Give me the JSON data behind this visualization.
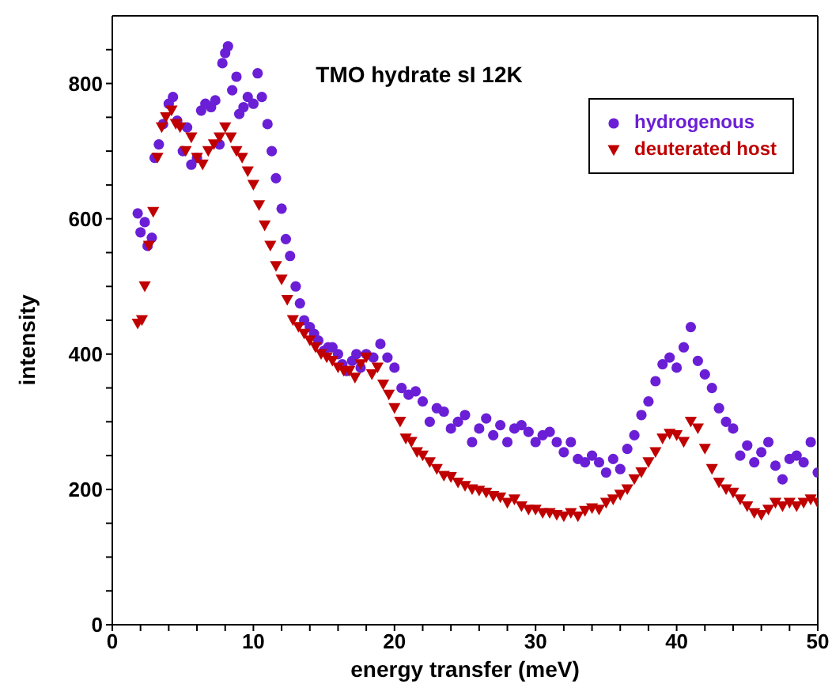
{
  "chart_data": {
    "type": "scatter",
    "title": "TMO hydrate sI 12K",
    "xlabel": "energy transfer (meV)",
    "ylabel": "intensity",
    "xlim": [
      0,
      50
    ],
    "xticks": [
      0,
      {
        "value": 2,
        "label": null
      },
      {
        "value": 4,
        "label": null
      },
      {
        "value": 6,
        "label": null
      },
      {
        "value": 8,
        "label": null
      },
      10,
      {
        "value": 12,
        "label": null
      },
      {
        "value": 14,
        "label": null
      },
      {
        "value": 16,
        "label": null
      },
      {
        "value": 18,
        "label": null
      },
      20,
      {
        "value": 22,
        "label": null
      },
      {
        "value": 24,
        "label": null
      },
      {
        "value": 26,
        "label": null
      },
      {
        "value": 28,
        "label": null
      },
      30,
      {
        "value": 32,
        "label": null
      },
      {
        "value": 34,
        "label": null
      },
      {
        "value": 36,
        "label": null
      },
      {
        "value": 38,
        "label": null
      },
      40,
      {
        "value": 42,
        "label": null
      },
      {
        "value": 44,
        "label": null
      },
      {
        "value": 46,
        "label": null
      },
      {
        "value": 48,
        "label": null
      },
      50
    ],
    "ylim": [
      0,
      900
    ],
    "yticks": [
      0,
      {
        "value": 50,
        "label": null
      },
      {
        "value": 100,
        "label": null
      },
      {
        "value": 150,
        "label": null
      },
      200,
      {
        "value": 250,
        "label": null
      },
      {
        "value": 300,
        "label": null
      },
      {
        "value": 350,
        "label": null
      },
      400,
      {
        "value": 450,
        "label": null
      },
      {
        "value": 500,
        "label": null
      },
      {
        "value": 550,
        "label": null
      },
      600,
      {
        "value": 650,
        "label": null
      },
      {
        "value": 700,
        "label": null
      },
      {
        "value": 750,
        "label": null
      },
      800,
      {
        "value": 850,
        "label": null
      }
    ],
    "legend": "top right",
    "series": [
      {
        "name": "hydrogenous",
        "color": "#6a1fd6",
        "marker": "circle",
        "x": [
          1.8,
          2.0,
          2.3,
          2.5,
          2.8,
          3.0,
          3.3,
          3.6,
          4.0,
          4.3,
          4.6,
          5.0,
          5.3,
          5.6,
          6.0,
          6.3,
          6.6,
          7.0,
          7.3,
          7.6,
          7.8,
          8.0,
          8.2,
          8.5,
          8.8,
          9.0,
          9.3,
          9.6,
          10.0,
          10.3,
          10.6,
          11.0,
          11.3,
          11.6,
          12.0,
          12.3,
          12.6,
          13.0,
          13.3,
          13.6,
          14.0,
          14.3,
          14.6,
          15.0,
          15.3,
          15.6,
          16.0,
          16.3,
          16.6,
          17.0,
          17.3,
          17.6,
          18.0,
          18.5,
          19.0,
          19.5,
          20.0,
          20.5,
          21.0,
          21.5,
          22,
          22.5,
          23,
          23.5,
          24,
          24.5,
          25,
          25.5,
          26,
          26.5,
          27,
          27.5,
          28,
          28.5,
          29,
          29.5,
          30,
          30.5,
          31,
          31.5,
          32,
          32.5,
          33,
          33.5,
          34,
          34.5,
          35,
          35.5,
          36,
          36.5,
          37,
          37.5,
          38,
          38.5,
          39,
          39.5,
          40,
          40.5,
          41,
          41.5,
          42,
          42.5,
          43,
          43.5,
          44,
          44.5,
          45,
          45.5,
          46,
          46.5,
          47,
          47.5,
          48,
          48.5,
          49,
          49.5,
          50
        ],
        "values": [
          608,
          580,
          595,
          560,
          572,
          690,
          710,
          740,
          770,
          780,
          745,
          700,
          735,
          680,
          690,
          760,
          770,
          765,
          775,
          710,
          830,
          845,
          855,
          790,
          810,
          755,
          765,
          780,
          770,
          815,
          780,
          740,
          700,
          660,
          615,
          570,
          545,
          500,
          475,
          450,
          440,
          430,
          420,
          405,
          410,
          410,
          400,
          385,
          375,
          390,
          400,
          380,
          400,
          395,
          415,
          395,
          380,
          350,
          340,
          345,
          330,
          300,
          320,
          315,
          290,
          300,
          310,
          270,
          290,
          305,
          280,
          295,
          270,
          290,
          295,
          285,
          270,
          280,
          285,
          270,
          255,
          270,
          245,
          240,
          250,
          240,
          225,
          245,
          230,
          260,
          280,
          310,
          330,
          360,
          385,
          395,
          380,
          410,
          440,
          390,
          370,
          350,
          320,
          300,
          290,
          250,
          265,
          240,
          255,
          270,
          235,
          215,
          245,
          250,
          240,
          270,
          225
        ]
      },
      {
        "name": "deuterated host",
        "color": "#c00000",
        "marker": "triangle",
        "x": [
          1.8,
          2.1,
          2.3,
          2.6,
          2.9,
          3.2,
          3.5,
          3.8,
          4.2,
          4.5,
          4.8,
          5.2,
          5.6,
          6.0,
          6.4,
          6.8,
          7.2,
          7.6,
          8.0,
          8.4,
          8.8,
          9.2,
          9.6,
          10.0,
          10.4,
          10.8,
          11.2,
          11.6,
          12.0,
          12.4,
          12.8,
          13.2,
          13.6,
          14.0,
          14.4,
          14.8,
          15.2,
          15.6,
          16.0,
          16.4,
          16.8,
          17.2,
          17.6,
          18.0,
          18.4,
          18.8,
          19.2,
          19.6,
          20.0,
          20.4,
          20.8,
          21.2,
          21.6,
          22.0,
          22.5,
          23,
          23.5,
          24,
          24.5,
          25,
          25.5,
          26,
          26.5,
          27,
          27.5,
          28,
          28.5,
          29,
          29.5,
          30,
          30.5,
          31,
          31.5,
          32,
          32.5,
          33,
          33.5,
          34,
          34.5,
          35,
          35.5,
          36,
          36.5,
          37,
          37.5,
          38,
          38.5,
          39,
          39.5,
          40,
          40.5,
          41,
          41.5,
          42,
          42.5,
          43,
          43.5,
          44,
          44.5,
          45,
          45.5,
          46,
          46.5,
          47,
          47.5,
          48,
          48.5,
          49,
          49.5,
          50
        ],
        "values": [
          445,
          450,
          500,
          560,
          610,
          690,
          735,
          750,
          760,
          740,
          735,
          700,
          720,
          690,
          680,
          700,
          710,
          720,
          735,
          720,
          700,
          690,
          670,
          650,
          620,
          590,
          560,
          530,
          510,
          480,
          450,
          440,
          430,
          420,
          410,
          400,
          395,
          390,
          380,
          375,
          375,
          365,
          385,
          395,
          370,
          380,
          355,
          340,
          320,
          300,
          275,
          270,
          255,
          250,
          240,
          230,
          220,
          218,
          210,
          205,
          200,
          198,
          195,
          190,
          188,
          180,
          185,
          175,
          170,
          170,
          165,
          165,
          162,
          160,
          165,
          160,
          168,
          172,
          170,
          180,
          185,
          192,
          200,
          215,
          225,
          240,
          255,
          275,
          282,
          280,
          270,
          300,
          290,
          260,
          230,
          210,
          200,
          195,
          185,
          175,
          165,
          162,
          170,
          180,
          175,
          180,
          175,
          180,
          185,
          180
        ]
      }
    ]
  }
}
